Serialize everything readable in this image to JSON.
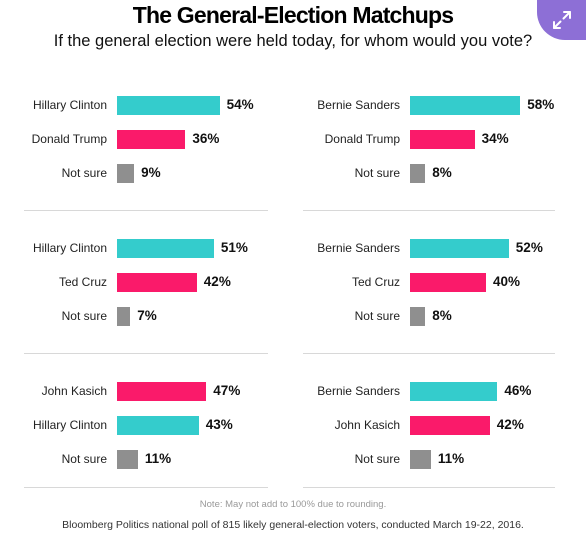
{
  "header": {
    "title": "The General-Election Matchups",
    "subtitle": "If the general election were held today, for whom would you vote?"
  },
  "expand_icon": "expand-arrows-icon",
  "colors": {
    "teal": "#34cccc",
    "pink": "#fa1a6a",
    "gray": "#8f8f8f",
    "expand_button": "#8d6fd6"
  },
  "chart_data": [
    {
      "type": "bar",
      "orientation": "horizontal",
      "value_unit": "%",
      "xlim": [
        0,
        100
      ],
      "categories": [
        "Hillary Clinton",
        "Donald Trump",
        "Not sure"
      ],
      "values": [
        54,
        36,
        9
      ],
      "labels": [
        "54%",
        "36%",
        "9%"
      ],
      "colors": [
        "teal",
        "pink",
        "gray"
      ]
    },
    {
      "type": "bar",
      "orientation": "horizontal",
      "value_unit": "%",
      "xlim": [
        0,
        100
      ],
      "categories": [
        "Bernie Sanders",
        "Donald Trump",
        "Not sure"
      ],
      "values": [
        58,
        34,
        8
      ],
      "labels": [
        "58%",
        "34%",
        "8%"
      ],
      "colors": [
        "teal",
        "pink",
        "gray"
      ]
    },
    {
      "type": "bar",
      "orientation": "horizontal",
      "value_unit": "%",
      "xlim": [
        0,
        100
      ],
      "categories": [
        "Hillary Clinton",
        "Ted Cruz",
        "Not sure"
      ],
      "values": [
        51,
        42,
        7
      ],
      "labels": [
        "51%",
        "42%",
        "7%"
      ],
      "colors": [
        "teal",
        "pink",
        "gray"
      ]
    },
    {
      "type": "bar",
      "orientation": "horizontal",
      "value_unit": "%",
      "xlim": [
        0,
        100
      ],
      "categories": [
        "Bernie Sanders",
        "Ted Cruz",
        "Not sure"
      ],
      "values": [
        52,
        40,
        8
      ],
      "labels": [
        "52%",
        "40%",
        "8%"
      ],
      "colors": [
        "teal",
        "pink",
        "gray"
      ]
    },
    {
      "type": "bar",
      "orientation": "horizontal",
      "value_unit": "%",
      "xlim": [
        0,
        100
      ],
      "categories": [
        "John Kasich",
        "Hillary Clinton",
        "Not sure"
      ],
      "values": [
        47,
        43,
        11
      ],
      "labels": [
        "47%",
        "43%",
        "11%"
      ],
      "colors": [
        "pink",
        "teal",
        "gray"
      ]
    },
    {
      "type": "bar",
      "orientation": "horizontal",
      "value_unit": "%",
      "xlim": [
        0,
        100
      ],
      "categories": [
        "Bernie Sanders",
        "John Kasich",
        "Not sure"
      ],
      "values": [
        46,
        42,
        11
      ],
      "labels": [
        "46%",
        "42%",
        "11%"
      ],
      "colors": [
        "teal",
        "pink",
        "gray"
      ]
    }
  ],
  "footer": {
    "note": "Note: May not add to 100% due to rounding.",
    "source": "Bloomberg Politics national poll of 815 likely general-election voters, conducted March 19-22, 2016."
  }
}
